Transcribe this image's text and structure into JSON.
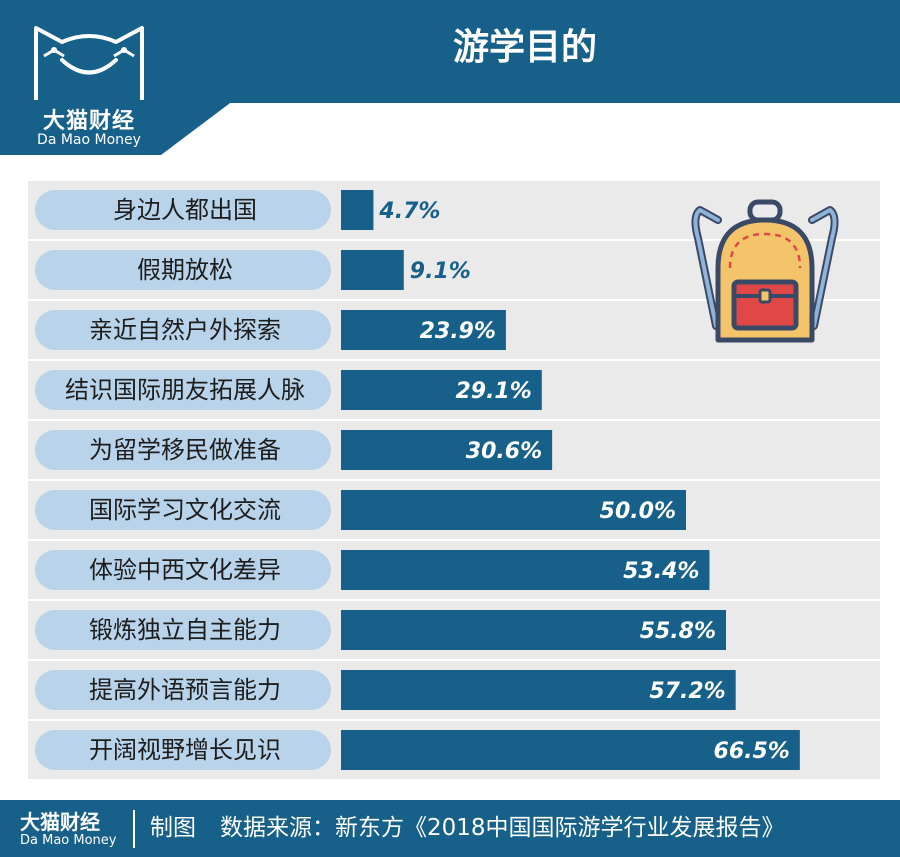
{
  "header": {
    "title": "游学目的",
    "logo_cn": "大猫财经",
    "logo_en": "Da Mao Money"
  },
  "colors": {
    "brand_blue": "#16608a",
    "pill": "#b8d3ea",
    "row_band": "#eaeaea",
    "bar": "#16608a",
    "outside_label": "#16608a",
    "inside_label": "#ffffff"
  },
  "chart_data": {
    "type": "bar",
    "orientation": "horizontal",
    "unit": "%",
    "categories": [
      "身边人都出国",
      "假期放松",
      "亲近自然户外探索",
      "结识国际朋友拓展人脉",
      "为留学移民做准备",
      "国际学习文化交流",
      "体验中西文化差异",
      "锻炼独立自主能力",
      "提高外语预言能力",
      "开阔视野增长见识"
    ],
    "values": [
      4.7,
      9.1,
      23.9,
      29.1,
      30.6,
      50.0,
      53.4,
      55.8,
      57.2,
      66.5
    ],
    "value_labels": [
      "4.7%",
      "9.1%",
      "23.9%",
      "29.1%",
      "30.6%",
      "50.0%",
      "53.4%",
      "55.8%",
      "57.2%",
      "66.5%"
    ],
    "xlim": [
      0,
      100
    ],
    "grid": false,
    "legend": "none"
  },
  "decoration": {
    "illustration_icon": "backpack-icon"
  },
  "footer": {
    "logo_cn": "大猫财经",
    "logo_en": "Da Mao Money",
    "credit": "制图",
    "source": "数据来源：新东方《2018中国国际游学行业发展报告》"
  }
}
